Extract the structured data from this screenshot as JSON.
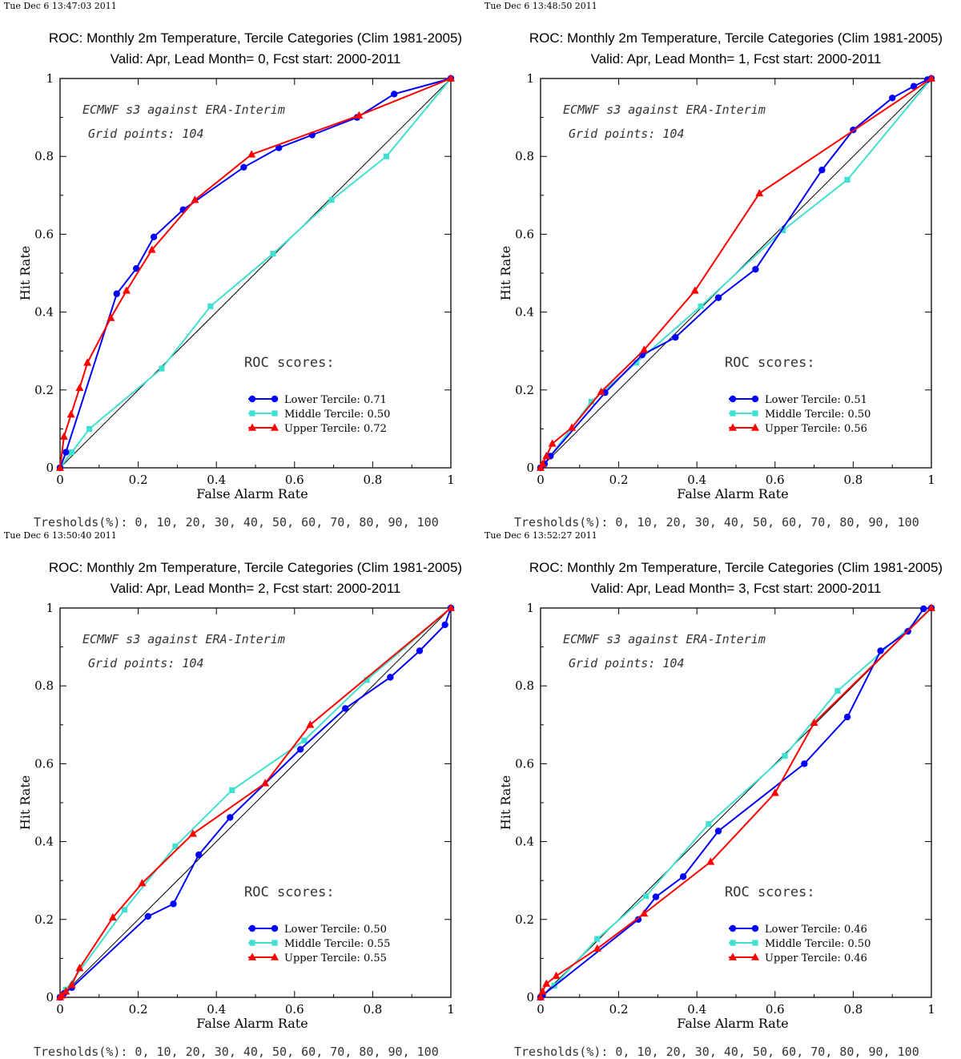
{
  "chart_data": [
    {
      "type": "line",
      "timestamp": "Tue Dec  6 13:47:03 2011",
      "title": "ROC: Monthly 2m Temperature, Tercile Categories (Clim 1981-2005)",
      "subtitle": "Valid: Apr, Lead Month= 0, Fcst start: 2000-2011",
      "xlabel": "False Alarm Rate",
      "ylabel": "Hit Rate",
      "xlim": [
        0,
        1
      ],
      "ylim": [
        0,
        1
      ],
      "xticks": [
        "0",
        "0.2",
        "0.4",
        "0.6",
        "0.8",
        "1"
      ],
      "yticks": [
        "0",
        "0.2",
        "0.4",
        "0.6",
        "0.8",
        "1"
      ],
      "annotations": [
        "ECMWF s3 against ERA-Interim",
        "Grid points:  104"
      ],
      "scores_title": "ROC scores:",
      "thresholds": "Tresholds(%): 0, 10, 20, 30, 40, 50, 60, 70, 80, 90, 100",
      "grid": false,
      "legend_position": "lower-right",
      "series": [
        {
          "name": "Lower Tercile: 0.71",
          "color": "#0000ff",
          "marker": "circle",
          "x": [
            0,
            0.015,
            0.145,
            0.195,
            0.24,
            0.315,
            0.47,
            0.56,
            0.645,
            0.76,
            0.855,
            1.0
          ],
          "y": [
            0,
            0.04,
            0.447,
            0.512,
            0.593,
            0.663,
            0.772,
            0.822,
            0.855,
            0.9,
            0.96,
            1.0
          ]
        },
        {
          "name": "Middle Tercile: 0.50",
          "color": "#40e0d0",
          "marker": "square",
          "x": [
            0,
            0.03,
            0.075,
            0.26,
            0.385,
            0.545,
            0.695,
            0.835,
            1.0
          ],
          "y": [
            0,
            0.04,
            0.1,
            0.255,
            0.415,
            0.55,
            0.688,
            0.8,
            1.0
          ]
        },
        {
          "name": "Upper Tercile: 0.72",
          "color": "#ff0000",
          "marker": "triangle",
          "x": [
            0,
            0.01,
            0.028,
            0.05,
            0.07,
            0.13,
            0.17,
            0.235,
            0.345,
            0.49,
            0.765,
            1.0
          ],
          "y": [
            0,
            0.08,
            0.137,
            0.205,
            0.27,
            0.385,
            0.455,
            0.56,
            0.688,
            0.805,
            0.905,
            1.0
          ]
        }
      ]
    },
    {
      "type": "line",
      "timestamp": "Tue Dec  6 13:48:50 2011",
      "title": "ROC: Monthly 2m Temperature, Tercile Categories (Clim 1981-2005)",
      "subtitle": "Valid: Apr, Lead Month= 1, Fcst start: 2000-2011",
      "xlabel": "False Alarm Rate",
      "ylabel": "Hit Rate",
      "xlim": [
        0,
        1
      ],
      "ylim": [
        0,
        1
      ],
      "xticks": [
        "0",
        "0.2",
        "0.4",
        "0.6",
        "0.8",
        "1"
      ],
      "yticks": [
        "0",
        "0.2",
        "0.4",
        "0.6",
        "0.8",
        "1"
      ],
      "annotations": [
        "ECMWF s3 against ERA-Interim",
        "Grid points:  104"
      ],
      "scores_title": "ROC scores:",
      "thresholds": "Tresholds(%): 0, 10, 20, 30, 40, 50, 60, 70, 80, 90, 100",
      "grid": false,
      "legend_position": "lower-right",
      "series": [
        {
          "name": "Lower Tercile: 0.51",
          "color": "#0000ff",
          "marker": "circle",
          "x": [
            0,
            0.01,
            0.025,
            0.165,
            0.26,
            0.345,
            0.455,
            0.55,
            0.72,
            0.8,
            0.9,
            0.955,
            0.99,
            1.0
          ],
          "y": [
            0,
            0.01,
            0.03,
            0.193,
            0.29,
            0.335,
            0.437,
            0.51,
            0.765,
            0.868,
            0.95,
            0.98,
            0.997,
            1.0
          ]
        },
        {
          "name": "Middle Tercile: 0.50",
          "color": "#40e0d0",
          "marker": "square",
          "x": [
            0,
            0.01,
            0.13,
            0.245,
            0.41,
            0.62,
            0.785,
            1.0
          ],
          "y": [
            0,
            0.01,
            0.17,
            0.27,
            0.415,
            0.61,
            0.74,
            1.0
          ]
        },
        {
          "name": "Upper Tercile: 0.56",
          "color": "#ff0000",
          "marker": "triangle",
          "x": [
            0,
            0.005,
            0.015,
            0.03,
            0.08,
            0.155,
            0.265,
            0.395,
            0.56,
            1.0
          ],
          "y": [
            0,
            0.01,
            0.03,
            0.062,
            0.103,
            0.195,
            0.303,
            0.455,
            0.705,
            1.0
          ]
        }
      ]
    },
    {
      "type": "line",
      "timestamp": "Tue Dec  6 13:50:40 2011",
      "title": "ROC: Monthly 2m Temperature, Tercile Categories (Clim 1981-2005)",
      "subtitle": "Valid: Apr, Lead Month= 2, Fcst start: 2000-2011",
      "xlabel": "False Alarm Rate",
      "ylabel": "Hit Rate",
      "xlim": [
        0,
        1
      ],
      "ylim": [
        0,
        1
      ],
      "xticks": [
        "0",
        "0.2",
        "0.4",
        "0.6",
        "0.8",
        "1"
      ],
      "yticks": [
        "0",
        "0.2",
        "0.4",
        "0.6",
        "0.8",
        "1"
      ],
      "annotations": [
        "ECMWF s3 against ERA-Interim",
        "Grid points:  104"
      ],
      "scores_title": "ROC scores:",
      "thresholds": "Tresholds(%): 0, 10, 20, 30, 40, 50, 60, 70, 80, 90, 100",
      "grid": false,
      "legend_position": "lower-right",
      "series": [
        {
          "name": "Lower Tercile: 0.50",
          "color": "#0000ff",
          "marker": "circle",
          "x": [
            0,
            0.01,
            0.03,
            0.225,
            0.29,
            0.355,
            0.435,
            0.615,
            0.73,
            0.845,
            0.92,
            0.985,
            1.0
          ],
          "y": [
            0,
            0.01,
            0.025,
            0.208,
            0.24,
            0.366,
            0.462,
            0.637,
            0.742,
            0.822,
            0.89,
            0.957,
            1.0
          ]
        },
        {
          "name": "Middle Tercile: 0.55",
          "color": "#40e0d0",
          "marker": "square",
          "x": [
            0,
            0.015,
            0.165,
            0.295,
            0.44,
            0.625,
            0.785,
            1.0
          ],
          "y": [
            0,
            0.02,
            0.225,
            0.388,
            0.532,
            0.66,
            0.815,
            1.0
          ]
        },
        {
          "name": "Upper Tercile: 0.55",
          "color": "#ff0000",
          "marker": "triangle",
          "x": [
            0,
            0.005,
            0.015,
            0.03,
            0.05,
            0.135,
            0.21,
            0.34,
            0.525,
            0.64,
            1.0
          ],
          "y": [
            0,
            0.005,
            0.015,
            0.032,
            0.075,
            0.205,
            0.293,
            0.42,
            0.55,
            0.7,
            1.0
          ]
        }
      ]
    },
    {
      "type": "line",
      "timestamp": "Tue Dec  6 13:52:27 2011",
      "title": "ROC: Monthly 2m Temperature, Tercile Categories (Clim 1981-2005)",
      "subtitle": "Valid: Apr, Lead Month= 3, Fcst start: 2000-2011",
      "xlabel": "False Alarm Rate",
      "ylabel": "Hit Rate",
      "xlim": [
        0,
        1
      ],
      "ylim": [
        0,
        1
      ],
      "xticks": [
        "0",
        "0.2",
        "0.4",
        "0.6",
        "0.8",
        "1"
      ],
      "yticks": [
        "0",
        "0.2",
        "0.4",
        "0.6",
        "0.8",
        "1"
      ],
      "annotations": [
        "ECMWF s3 against ERA-Interim",
        "Grid points:  104"
      ],
      "scores_title": "ROC scores:",
      "thresholds": "Tresholds(%): 0, 10, 20, 30, 40, 50, 60, 70, 80, 90, 100",
      "grid": false,
      "legend_position": "lower-right",
      "series": [
        {
          "name": "Lower Tercile: 0.46",
          "color": "#0000ff",
          "marker": "circle",
          "x": [
            0,
            0.005,
            0.25,
            0.295,
            0.365,
            0.455,
            0.675,
            0.785,
            0.87,
            0.94,
            0.98,
            1.0
          ],
          "y": [
            0,
            0.005,
            0.2,
            0.258,
            0.31,
            0.427,
            0.6,
            0.72,
            0.89,
            0.94,
            0.998,
            1.0
          ]
        },
        {
          "name": "Middle Tercile: 0.50",
          "color": "#40e0d0",
          "marker": "square",
          "x": [
            0,
            0.035,
            0.145,
            0.27,
            0.43,
            0.625,
            0.76,
            1.0
          ],
          "y": [
            0,
            0.03,
            0.15,
            0.26,
            0.445,
            0.62,
            0.787,
            1.0
          ]
        },
        {
          "name": "Upper Tercile: 0.46",
          "color": "#ff0000",
          "marker": "triangle",
          "x": [
            0,
            0.005,
            0.015,
            0.04,
            0.145,
            0.265,
            0.435,
            0.6,
            0.7,
            1.0
          ],
          "y": [
            0,
            0.015,
            0.035,
            0.055,
            0.125,
            0.215,
            0.348,
            0.525,
            0.705,
            1.0
          ]
        }
      ]
    }
  ]
}
